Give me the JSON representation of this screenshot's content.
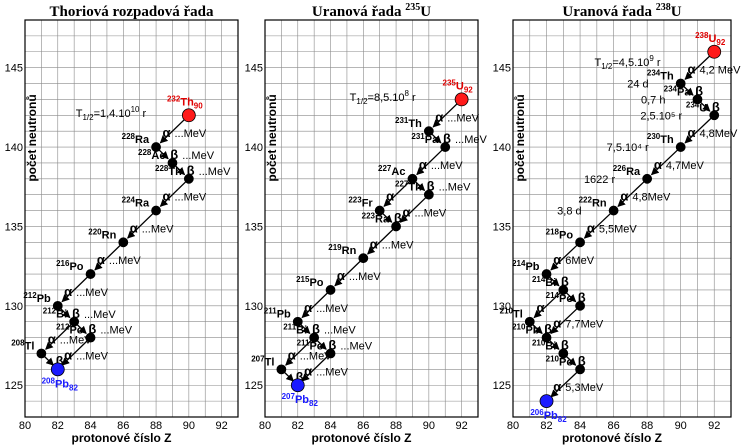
{
  "shared": {
    "x_axis_label": "protonové číslo  Z",
    "y_axis_label": "počet neutronů",
    "x_ticks": [
      "80",
      "82",
      "84",
      "86",
      "88",
      "90",
      "92"
    ],
    "y_ticks": [
      "125",
      "130",
      "135",
      "140",
      "145"
    ],
    "colors": {
      "start": "#ff1a1a",
      "end": "#1a1aff",
      "node": "#000000",
      "grid": "#8a8a8a"
    }
  },
  "panels": [
    {
      "title": "Thoriová rozpadová řada",
      "title_sup": "",
      "title_suffix": "",
      "xlim": [
        80,
        93
      ],
      "ylim": [
        123,
        148
      ],
      "halflife": {
        "text": "T",
        "sub": "1/2",
        "rest": "=1,4.10",
        "sup": "10",
        "unit": " r",
        "z": 87.4,
        "n": 141.9
      },
      "nuclides": [
        {
          "mass": "232",
          "sym": "Th",
          "z": 90,
          "n": 142,
          "role": "start",
          "sub": "90"
        },
        {
          "mass": "228",
          "sym": "Ra",
          "z": 88,
          "n": 140,
          "role": "node"
        },
        {
          "mass": "228",
          "sym": "Ac",
          "z": 89,
          "n": 139,
          "role": "node"
        },
        {
          "mass": "228",
          "sym": "Th",
          "z": 90,
          "n": 138,
          "role": "node"
        },
        {
          "mass": "224",
          "sym": "Ra",
          "z": 88,
          "n": 136,
          "role": "node"
        },
        {
          "mass": "220",
          "sym": "Rn",
          "z": 86,
          "n": 134,
          "role": "node"
        },
        {
          "mass": "216",
          "sym": "Po",
          "z": 84,
          "n": 132,
          "role": "node"
        },
        {
          "mass": "212",
          "sym": "Pb",
          "z": 82,
          "n": 130,
          "role": "node"
        },
        {
          "mass": "212",
          "sym": "Bi",
          "z": 83,
          "n": 129,
          "role": "node"
        },
        {
          "mass": "212",
          "sym": "Po",
          "z": 84,
          "n": 128,
          "role": "node"
        },
        {
          "mass": "208",
          "sym": "Tl",
          "z": 81,
          "n": 127,
          "role": "node"
        },
        {
          "mass": "208",
          "sym": "Pb",
          "z": 82,
          "n": 126,
          "role": "end",
          "sub": "82"
        }
      ],
      "transitions": [
        {
          "from": 0,
          "to": 1,
          "type": "α",
          "energy": "...MeV"
        },
        {
          "from": 1,
          "to": 2,
          "type": "β",
          "energy": "...MeV"
        },
        {
          "from": 2,
          "to": 3,
          "type": "β",
          "energy": "...MeV"
        },
        {
          "from": 3,
          "to": 4,
          "type": "α",
          "energy": "...MeV"
        },
        {
          "from": 4,
          "to": 5,
          "type": "α",
          "energy": "...MeV"
        },
        {
          "from": 5,
          "to": 6,
          "type": "α",
          "energy": "...MeV"
        },
        {
          "from": 6,
          "to": 7,
          "type": "α",
          "energy": "...MeV"
        },
        {
          "from": 7,
          "to": 8,
          "type": "β",
          "energy": "...MeV"
        },
        {
          "from": 8,
          "to": 9,
          "type": "β",
          "energy": "...MeV"
        },
        {
          "from": 8,
          "to": 10,
          "type": "α",
          "energy": "...MeV"
        },
        {
          "from": 9,
          "to": 11,
          "type": "α",
          "energy": "...MeV"
        },
        {
          "from": 10,
          "to": 11,
          "type": "β",
          "energy": ""
        }
      ]
    },
    {
      "title": "Uranová řada ",
      "title_sup": "235",
      "title_suffix": "U",
      "xlim": [
        80,
        93
      ],
      "ylim": [
        123,
        148
      ],
      "halflife": {
        "text": "T",
        "sub": "1/2",
        "rest": "=8,5.10",
        "sup": "8",
        "unit": " r",
        "z": 89.2,
        "n": 142.9
      },
      "nuclides": [
        {
          "mass": "235",
          "sym": "U",
          "z": 92,
          "n": 143,
          "role": "start",
          "sub": "92"
        },
        {
          "mass": "231",
          "sym": "Th",
          "z": 90,
          "n": 141,
          "role": "node"
        },
        {
          "mass": "231",
          "sym": "Pa",
          "z": 91,
          "n": 140,
          "role": "node"
        },
        {
          "mass": "227",
          "sym": "Ac",
          "z": 89,
          "n": 138,
          "role": "node"
        },
        {
          "mass": "227",
          "sym": "Th",
          "z": 90,
          "n": 137,
          "role": "node"
        },
        {
          "mass": "223",
          "sym": "Fr",
          "z": 87,
          "n": 136,
          "role": "node"
        },
        {
          "mass": "223",
          "sym": "Ra",
          "z": 88,
          "n": 135,
          "role": "node"
        },
        {
          "mass": "219",
          "sym": "Rn",
          "z": 86,
          "n": 133,
          "role": "node"
        },
        {
          "mass": "215",
          "sym": "Po",
          "z": 84,
          "n": 131,
          "role": "node"
        },
        {
          "mass": "211",
          "sym": "Pb",
          "z": 82,
          "n": 129,
          "role": "node"
        },
        {
          "mass": "211",
          "sym": "Bi",
          "z": 83,
          "n": 128,
          "role": "node"
        },
        {
          "mass": "211",
          "sym": "Po",
          "z": 84,
          "n": 127,
          "role": "node"
        },
        {
          "mass": "207",
          "sym": "Tl",
          "z": 81,
          "n": 126,
          "role": "node"
        },
        {
          "mass": "207",
          "sym": "Pb",
          "z": 82,
          "n": 125,
          "role": "end",
          "sub": "82"
        }
      ],
      "transitions": [
        {
          "from": 0,
          "to": 1,
          "type": "α",
          "energy": "...MeV"
        },
        {
          "from": 1,
          "to": 2,
          "type": "β",
          "energy": "...MeV"
        },
        {
          "from": 2,
          "to": 3,
          "type": "α",
          "energy": "...MeV"
        },
        {
          "from": 3,
          "to": 4,
          "type": "β",
          "energy": "...MeV"
        },
        {
          "from": 3,
          "to": 5,
          "type": "α",
          "energy": ""
        },
        {
          "from": 5,
          "to": 6,
          "type": "β",
          "energy": ""
        },
        {
          "from": 4,
          "to": 6,
          "type": "α",
          "energy": "...MeV"
        },
        {
          "from": 6,
          "to": 7,
          "type": "α",
          "energy": "...MeV"
        },
        {
          "from": 7,
          "to": 8,
          "type": "α",
          "energy": "...MeV"
        },
        {
          "from": 8,
          "to": 9,
          "type": "α",
          "energy": "...MeV"
        },
        {
          "from": 9,
          "to": 10,
          "type": "β",
          "energy": "...MeV"
        },
        {
          "from": 10,
          "to": 11,
          "type": "β",
          "energy": "...MeV"
        },
        {
          "from": 10,
          "to": 12,
          "type": "α",
          "energy": "...MeV"
        },
        {
          "from": 11,
          "to": 13,
          "type": "α",
          "energy": "...MeV"
        },
        {
          "from": 12,
          "to": 13,
          "type": "β",
          "energy": ""
        }
      ]
    },
    {
      "title": "Uranová řada ",
      "title_sup": "238",
      "title_suffix": "U",
      "xlim": [
        80,
        93
      ],
      "ylim": [
        123,
        148
      ],
      "halflife": {
        "text": "T",
        "sub": "1/2",
        "rest": "=4,5.10",
        "sup": "9",
        "unit": " r",
        "z": 88.8,
        "n": 145.1
      },
      "nuclides": [
        {
          "mass": "238",
          "sym": "U",
          "z": 92,
          "n": 146,
          "role": "start",
          "sub": "92"
        },
        {
          "mass": "234",
          "sym": "Th",
          "z": 90,
          "n": 144,
          "role": "node",
          "life": "24 d"
        },
        {
          "mass": "234",
          "sym": "Pa",
          "z": 91,
          "n": 143,
          "role": "node",
          "life": "0,7 h"
        },
        {
          "mass": "234",
          "sym": "U",
          "z": 92,
          "n": 142,
          "role": "node",
          "life": "2,5.10⁵ r"
        },
        {
          "mass": "230",
          "sym": "Th",
          "z": 90,
          "n": 140,
          "role": "node",
          "life": "7,5.10⁴ r"
        },
        {
          "mass": "226",
          "sym": "Ra",
          "z": 88,
          "n": 138,
          "role": "node",
          "life": "1622 r"
        },
        {
          "mass": "222",
          "sym": "Rn",
          "z": 86,
          "n": 136,
          "role": "node",
          "life": "3,8 d"
        },
        {
          "mass": "218",
          "sym": "Po",
          "z": 84,
          "n": 134,
          "role": "node"
        },
        {
          "mass": "214",
          "sym": "Pb",
          "z": 82,
          "n": 132,
          "role": "node"
        },
        {
          "mass": "214",
          "sym": "Bi",
          "z": 83,
          "n": 131,
          "role": "node"
        },
        {
          "mass": "214",
          "sym": "Po",
          "z": 84,
          "n": 130,
          "role": "node"
        },
        {
          "mass": "210",
          "sym": "Tl",
          "z": 81,
          "n": 129,
          "role": "node"
        },
        {
          "mass": "210",
          "sym": "Pb",
          "z": 82,
          "n": 128,
          "role": "node"
        },
        {
          "mass": "210",
          "sym": "Bi",
          "z": 83,
          "n": 127,
          "role": "node"
        },
        {
          "mass": "210",
          "sym": "Po",
          "z": 84,
          "n": 126,
          "role": "node"
        },
        {
          "mass": "206",
          "sym": "Pb",
          "z": 82,
          "n": 124,
          "role": "end",
          "sub": "82"
        }
      ],
      "transitions": [
        {
          "from": 0,
          "to": 1,
          "type": "α",
          "energy": "4,2 MeV"
        },
        {
          "from": 1,
          "to": 2,
          "type": "β",
          "energy": ""
        },
        {
          "from": 2,
          "to": 3,
          "type": "β",
          "energy": ""
        },
        {
          "from": 3,
          "to": 4,
          "type": "α",
          "energy": "4,8MeV"
        },
        {
          "from": 4,
          "to": 5,
          "type": "α",
          "energy": "4,7MeV"
        },
        {
          "from": 5,
          "to": 6,
          "type": "α",
          "energy": "4,8MeV"
        },
        {
          "from": 6,
          "to": 7,
          "type": "α",
          "energy": "5,5MeV"
        },
        {
          "from": 7,
          "to": 8,
          "type": "α",
          "energy": "6MeV"
        },
        {
          "from": 8,
          "to": 9,
          "type": "β",
          "energy": ""
        },
        {
          "from": 9,
          "to": 10,
          "type": "β",
          "energy": ""
        },
        {
          "from": 9,
          "to": 11,
          "type": "α",
          "energy": ""
        },
        {
          "from": 10,
          "to": 12,
          "type": "α",
          "energy": "7,7MeV"
        },
        {
          "from": 11,
          "to": 12,
          "type": "β",
          "energy": ""
        },
        {
          "from": 12,
          "to": 13,
          "type": "β",
          "energy": ""
        },
        {
          "from": 13,
          "to": 14,
          "type": "β",
          "energy": ""
        },
        {
          "from": 14,
          "to": 15,
          "type": "α",
          "energy": "5,3MeV"
        }
      ]
    }
  ]
}
